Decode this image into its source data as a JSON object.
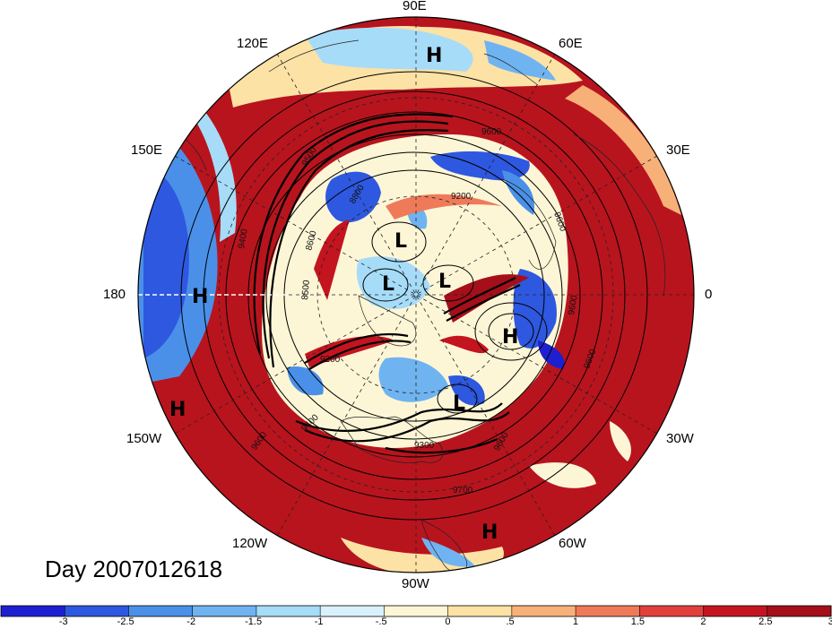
{
  "date_label": "Day 2007012618",
  "longitude_labels": [
    "90E",
    "60E",
    "30E",
    "0",
    "30W",
    "60W",
    "90W",
    "120W",
    "150W",
    "180",
    "150E",
    "120E"
  ],
  "pressure_markers": [
    "H",
    "H",
    "H",
    "H",
    "H",
    "L",
    "L",
    "L",
    "L"
  ],
  "contour_labels": [
    "9600",
    "9500",
    "9200",
    "8800",
    "8600",
    "8500",
    "9400",
    "9200",
    "9600",
    "9300",
    "9400",
    "9600",
    "9600",
    "9600",
    "9700",
    "9600"
  ],
  "colorbar": {
    "ticks": [
      "-3",
      "-2.5",
      "-2",
      "-1.5",
      "-1",
      "-.5",
      "0",
      ".5",
      "1",
      "1.5",
      "2",
      "2.5",
      "3"
    ],
    "colors": [
      "#1f1fd2",
      "#2e58e0",
      "#4a90e8",
      "#6fb4f0",
      "#a6dcf8",
      "#d9f1fc",
      "#fdf6d6",
      "#fde2a6",
      "#f7b178",
      "#ef7a5a",
      "#e2403d",
      "#c4141f",
      "#a50f1a"
    ]
  }
}
